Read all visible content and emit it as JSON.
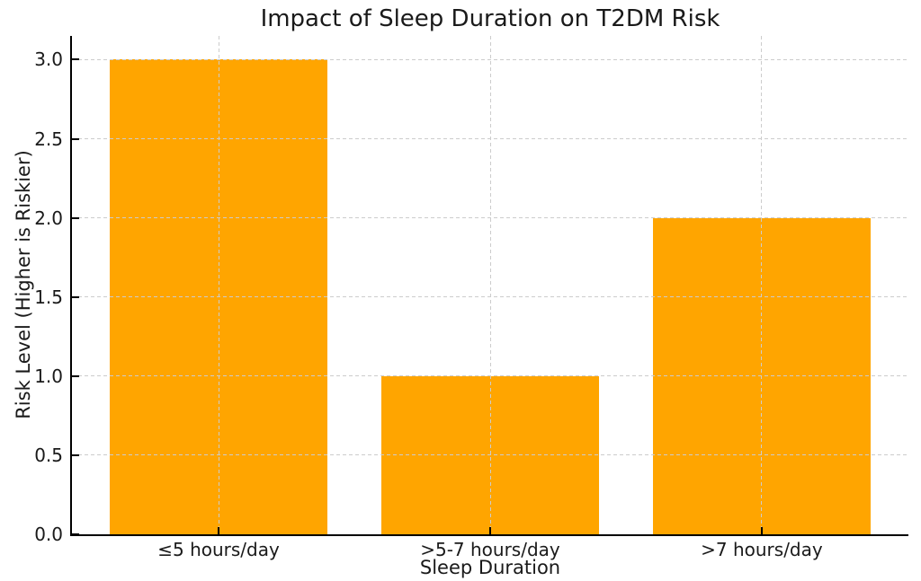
{
  "figure": {
    "background": "#ffffff"
  },
  "chart_data": {
    "type": "bar",
    "title": "Impact of Sleep Duration on T2DM Risk",
    "xlabel": "Sleep Duration",
    "ylabel": "Risk Level (Higher is Riskier)",
    "categories": [
      "≤5 hours/day",
      ">5-7 hours/day",
      ">7 hours/day"
    ],
    "values": [
      3,
      1,
      2
    ],
    "ytick_labels": [
      "0.0",
      "0.5",
      "1.0",
      "1.5",
      "2.0",
      "2.5",
      "3.0"
    ],
    "ytick_values": [
      0,
      0.5,
      1,
      1.5,
      2,
      2.5,
      3
    ],
    "ylim": [
      0,
      3.15
    ],
    "bar_color": "#FFA500",
    "grid": true,
    "grid_color": "#cccccc",
    "grid_style": "dashed",
    "gridlines_above_bars": true,
    "tick_direction": "in",
    "spines": [
      "left",
      "bottom"
    ],
    "spine_color": "#000000",
    "text_color": "#1a1a1a"
  }
}
